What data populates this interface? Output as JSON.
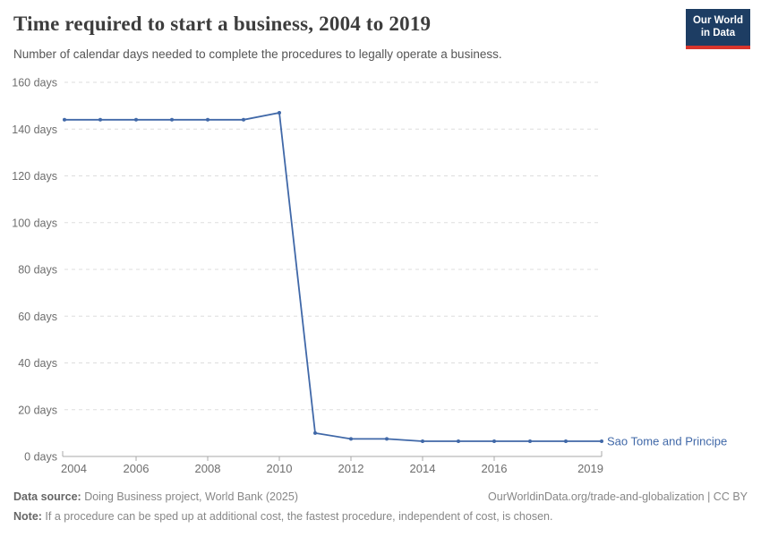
{
  "header": {
    "title": "Time required to start a business, 2004 to 2019",
    "subtitle": "Number of calendar days needed to complete the procedures to legally operate a business.",
    "logo": {
      "line1": "Our World",
      "line2": "in Data"
    }
  },
  "chart_data": {
    "type": "line",
    "title": "Time required to start a business, 2004 to 2019",
    "xlabel": "",
    "ylabel": "days",
    "x": [
      2004,
      2005,
      2006,
      2007,
      2008,
      2009,
      2010,
      2011,
      2012,
      2013,
      2014,
      2015,
      2016,
      2017,
      2018,
      2019
    ],
    "series": [
      {
        "name": "Sao Tome and Principe",
        "values": [
          144,
          144,
          144,
          144,
          144,
          144,
          147,
          10,
          7.5,
          7.5,
          6.5,
          6.5,
          6.5,
          6.5,
          6.5,
          6.5
        ]
      }
    ],
    "x_ticks": [
      2004,
      2006,
      2008,
      2010,
      2012,
      2014,
      2016,
      2019
    ],
    "y_ticks": [
      0,
      20,
      40,
      60,
      80,
      100,
      120,
      140,
      160
    ],
    "y_tick_suffix": " days",
    "xlim": [
      2004,
      2019
    ],
    "ylim": [
      0,
      160
    ],
    "grid": "horizontal-dashed",
    "legend_position": "end-of-line-label",
    "end_label": "Sao Tome and Principe"
  },
  "colors": {
    "line": "#4068a8",
    "grid": "#dddddd",
    "axis": "#a8a8a8",
    "tick_label": "#6e6e6e",
    "end_label": "#4068a8"
  },
  "footer": {
    "source_label": "Data source:",
    "source_text": " Doing Business project, World Bank (2025)",
    "cite_text": "OurWorldinData.org/trade-and-globalization | CC BY",
    "note_label": "Note:",
    "note_text": " If a procedure can be sped up at additional cost, the fastest procedure, independent of cost, is chosen."
  }
}
